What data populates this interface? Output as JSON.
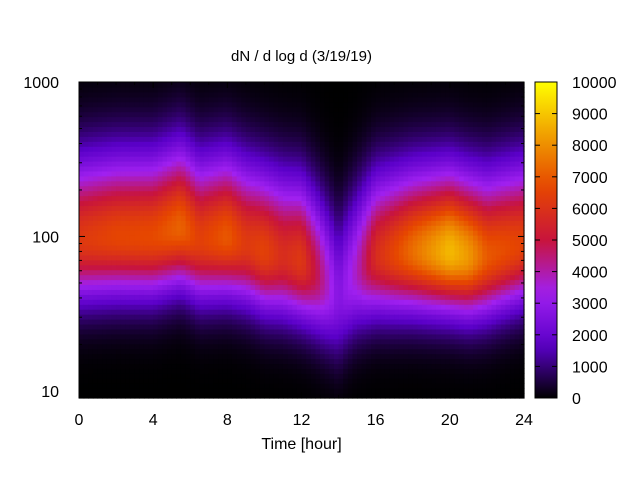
{
  "chart_data": {
    "type": "heatmap",
    "title": "dN / d log d (3/19/19)",
    "xlabel": "Time [hour]",
    "ylabel": "",
    "x_ticks": [
      0,
      4,
      8,
      12,
      16,
      20,
      24
    ],
    "xlim": [
      0,
      24
    ],
    "y_ticks": [
      10,
      100,
      1000
    ],
    "y_scale": "log",
    "ylim": [
      9,
      1000
    ],
    "colorbar": {
      "ticks": [
        0,
        1000,
        2000,
        3000,
        4000,
        5000,
        6000,
        7000,
        8000,
        9000,
        10000
      ],
      "range": [
        0,
        10000
      ],
      "colormap": "gnuplot-pm3d",
      "colors": [
        "#000000",
        "#5a00c8",
        "#a020f0",
        "#c8143c",
        "#e64600",
        "#f0a000",
        "#ffff00"
      ]
    },
    "grid": false,
    "legend": "colorbar-right",
    "time_hours": [
      0,
      2,
      4,
      5.5,
      6.5,
      8,
      9,
      10,
      11,
      12,
      13,
      14,
      15,
      16,
      18,
      20,
      21,
      22,
      24
    ],
    "peak_diameter": [
      95,
      100,
      100,
      115,
      95,
      100,
      90,
      80,
      75,
      70,
      55,
      40,
      60,
      75,
      80,
      80,
      75,
      75,
      90
    ],
    "peak_value": [
      6200,
      6600,
      6700,
      7200,
      6400,
      7000,
      6200,
      6500,
      5800,
      6200,
      4500,
      2600,
      3800,
      5800,
      7400,
      8800,
      8200,
      7000,
      6500
    ]
  }
}
